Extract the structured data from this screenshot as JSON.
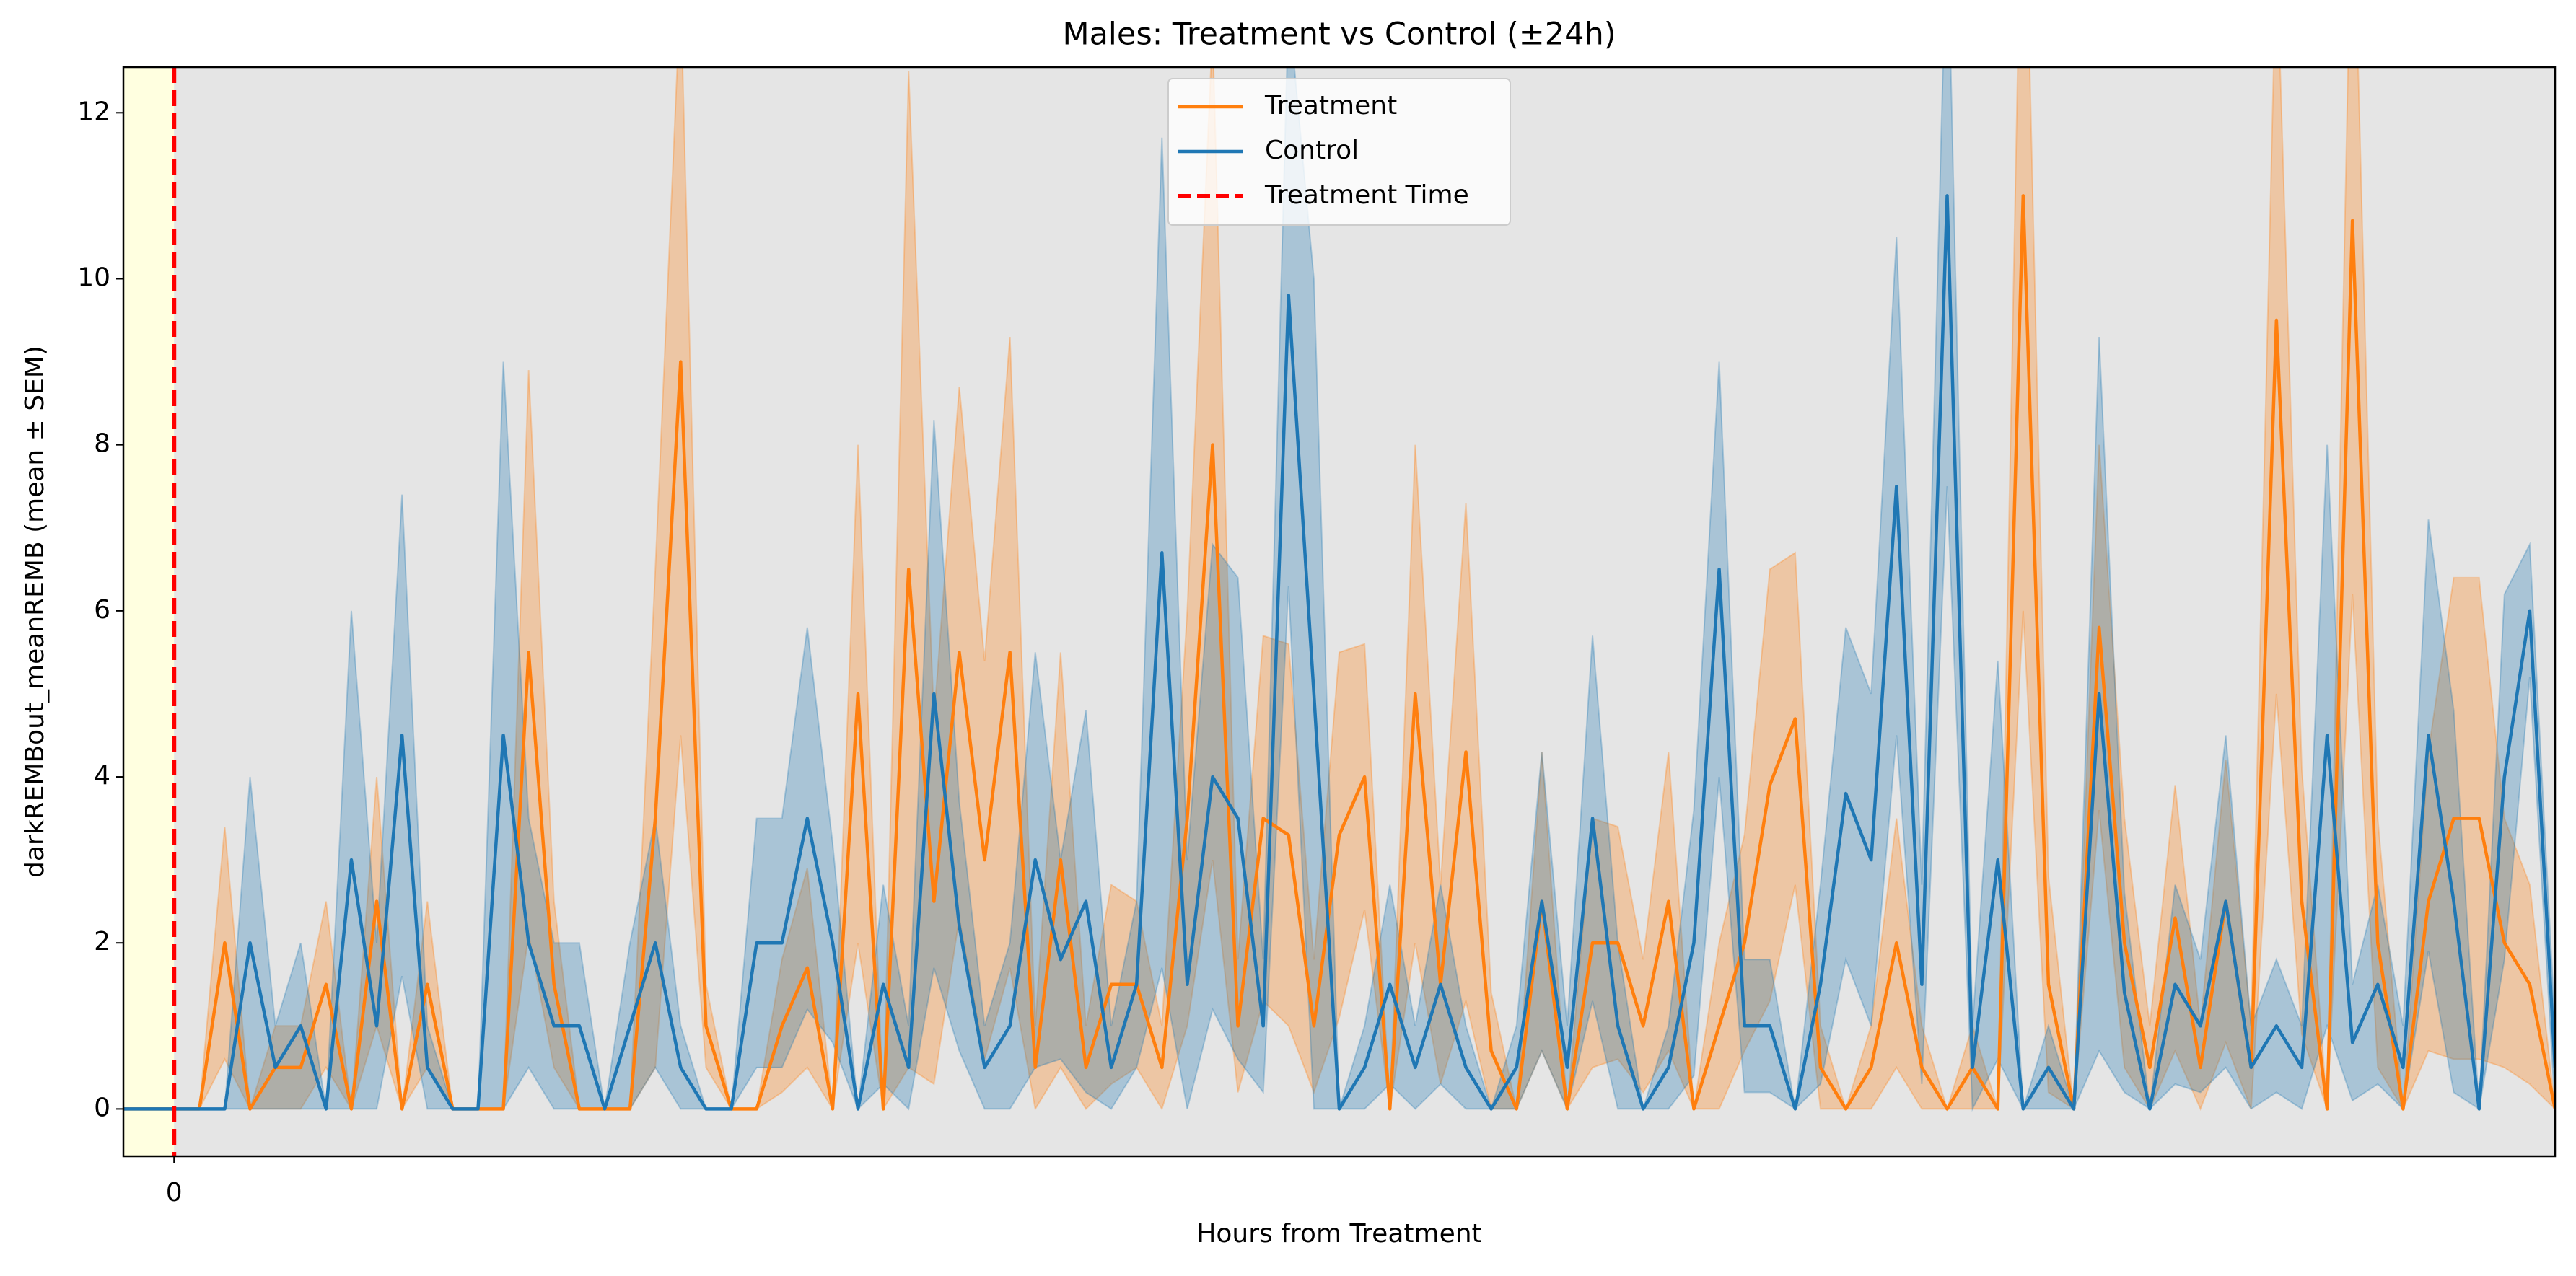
{
  "chart_data": {
    "type": "line",
    "title": "Males: Treatment vs Control (±24h)",
    "x_label": "Hours from Treatment",
    "y_label": "darkREMBout_meanREMB (mean ± SEM)",
    "x": [
      -0.5,
      -0.25,
      0,
      0.25,
      0.5,
      0.75,
      1,
      1.25,
      1.5,
      1.75,
      2,
      2.25,
      2.5,
      2.75,
      3,
      3.25,
      3.5,
      3.75,
      4,
      4.25,
      4.5,
      4.75,
      5,
      5.25,
      5.5,
      5.75,
      6,
      6.25,
      6.5,
      6.75,
      7,
      7.25,
      7.5,
      7.75,
      8,
      8.25,
      8.5,
      8.75,
      9,
      9.25,
      9.5,
      9.75,
      10,
      10.25,
      10.5,
      10.75,
      11,
      11.25,
      11.5,
      11.75,
      12,
      12.25,
      12.5,
      12.75,
      13,
      13.25,
      13.5,
      13.75,
      14,
      14.25,
      14.5,
      14.75,
      15,
      15.25,
      15.5,
      15.75,
      16,
      16.25,
      16.5,
      16.75,
      17,
      17.25,
      17.5,
      17.75,
      18,
      18.25,
      18.5,
      18.75,
      19,
      19.25,
      19.5,
      19.75,
      20,
      20.25,
      20.5,
      20.75,
      21,
      21.25,
      21.5,
      21.75,
      22,
      22.25,
      22.5,
      22.75,
      23,
      23.25,
      23.5
    ],
    "series": [
      {
        "name": "Treatment",
        "color": "#ff7f0e",
        "values": [
          0,
          0,
          0,
          0,
          2,
          0,
          0.5,
          0.5,
          1.5,
          0,
          2.5,
          0,
          1.5,
          0,
          0,
          0,
          5.5,
          1.5,
          0,
          0,
          0,
          3.5,
          9,
          1,
          0,
          0,
          1,
          1.7,
          0,
          5,
          0,
          6.5,
          2.5,
          5.5,
          3,
          5.5,
          0.5,
          3,
          0.5,
          1.5,
          1.5,
          0.5,
          3.5,
          8,
          1,
          3.5,
          3.3,
          1,
          3.3,
          4,
          0,
          5,
          1.5,
          4.3,
          0.7,
          0,
          2.5,
          0,
          2,
          2,
          1,
          2.5,
          0,
          1,
          2,
          3.9,
          4.7,
          0.5,
          0,
          0.5,
          2,
          0.5,
          0,
          0.5,
          0,
          11,
          1.5,
          0,
          5.8,
          2,
          0.5,
          2.3,
          0.5,
          2.5,
          0.5,
          9.5,
          2.5,
          0,
          10.7,
          2,
          0,
          2.5,
          3.5,
          3.5,
          2,
          1.5,
          0
        ],
        "sem": [
          0,
          0,
          0,
          0,
          1.4,
          0,
          0.5,
          0.5,
          1,
          0,
          1.5,
          0,
          1,
          0,
          0,
          0,
          3.4,
          1,
          0,
          0,
          0,
          3,
          4.5,
          0.5,
          0,
          0,
          0.8,
          1.2,
          0,
          3,
          0,
          6,
          2.2,
          3.2,
          2.4,
          3.8,
          0.5,
          2.5,
          0.5,
          1.2,
          1,
          0.5,
          2.5,
          5,
          0.8,
          2.2,
          2.3,
          0.8,
          2.2,
          1.6,
          0,
          3,
          1.2,
          3,
          0.7,
          0,
          1.8,
          0,
          1.5,
          1.4,
          0.8,
          1.8,
          0,
          1,
          1.3,
          2.6,
          2,
          0.5,
          0,
          0.5,
          1.5,
          0.5,
          0,
          0.5,
          0,
          5,
          1.3,
          0,
          2.2,
          1.5,
          0.5,
          1.6,
          0.5,
          1.7,
          0.5,
          4.5,
          1.6,
          0,
          4.5,
          1.5,
          0,
          1.8,
          2.9,
          2.9,
          1.5,
          1.2,
          0
        ]
      },
      {
        "name": "Control",
        "color": "#1f77b4",
        "values": [
          0,
          0,
          0,
          0,
          0,
          2,
          0.5,
          1,
          0,
          3,
          1,
          4.5,
          0.5,
          0,
          0,
          4.5,
          2,
          1,
          1,
          0,
          1,
          2,
          0.5,
          0,
          0,
          2,
          2,
          3.5,
          2,
          0,
          1.5,
          0.5,
          5,
          2.2,
          0.5,
          1,
          3,
          1.8,
          2.5,
          0.5,
          1.5,
          6.7,
          1.5,
          4,
          3.5,
          1,
          9.8,
          5,
          0,
          0.5,
          1.5,
          0.5,
          1.5,
          0.5,
          0,
          0.5,
          2.5,
          0.5,
          3.5,
          1,
          0,
          0.5,
          2,
          6.5,
          1,
          1,
          0,
          1.5,
          3.8,
          3,
          7.5,
          1.5,
          11,
          0.5,
          3,
          0,
          0.5,
          0,
          5,
          1.4,
          0,
          1.5,
          1,
          2.5,
          0.5,
          1,
          0.5,
          4.5,
          0.8,
          1.5,
          0.5,
          4.5,
          2.5,
          0,
          4,
          6,
          0.5
        ],
        "sem": [
          0,
          0,
          0,
          0,
          0,
          2,
          0.5,
          1,
          0,
          3,
          1,
          2.9,
          0.5,
          0,
          0,
          4.5,
          1.5,
          1,
          1,
          0,
          1,
          1.5,
          0.5,
          0,
          0,
          1.5,
          1.5,
          2.3,
          1.2,
          0,
          1.2,
          0.5,
          3.3,
          1.5,
          0.5,
          1,
          2.5,
          1.2,
          2.3,
          0.5,
          1,
          5,
          1.5,
          2.8,
          2.9,
          0.8,
          3.5,
          5,
          0,
          0.5,
          1.2,
          0.5,
          1.2,
          0.5,
          0,
          0.5,
          1.8,
          0.5,
          2.2,
          1,
          0,
          0.5,
          1.6,
          2.5,
          0.8,
          0.8,
          0,
          1.2,
          2,
          2,
          3,
          1.2,
          3.5,
          0.5,
          2.4,
          0,
          0.5,
          0,
          4.3,
          1.2,
          0,
          1.2,
          0.8,
          2,
          0.5,
          0.8,
          0.5,
          3.5,
          0.7,
          1.2,
          0.5,
          2.6,
          2.3,
          0,
          2.2,
          0.8,
          0.5
        ]
      }
    ],
    "vline": {
      "x": 0,
      "name": "Treatment Time",
      "color": "#ff0000"
    },
    "shade_color": "#ffffe0",
    "background": "#e5e5e5",
    "xlim": [
      -0.5,
      23.5
    ],
    "xticks": [
      0
    ],
    "ylim": [
      -0.57,
      12.55
    ],
    "yticks": [
      0,
      2,
      4,
      6,
      8,
      10,
      12
    ],
    "legend": "upper center"
  }
}
